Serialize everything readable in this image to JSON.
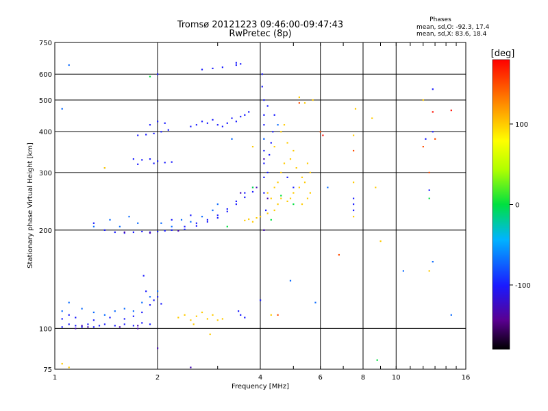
{
  "header": {
    "title_line1": "Tromsø 20121223 09:46:00-09:47:43",
    "title_line2": "RwPretec (8p)",
    "phases_label": "Phases",
    "stats_o": "mean, sd,O: -92.3, 17.4",
    "stats_x": "mean, sd,X:  83.6, 18.4"
  },
  "chart_data": {
    "type": "scatter",
    "xlabel": "Frequency [MHz]",
    "ylabel": "Stationary phase Virtual Height [km]",
    "xscale": "log",
    "yscale": "log",
    "xlim": [
      1,
      16
    ],
    "ylim": [
      75,
      750
    ],
    "xticks": [
      1,
      2,
      4,
      6,
      8,
      10,
      16
    ],
    "yticks": [
      75,
      100,
      200,
      300,
      400,
      500,
      600,
      750
    ],
    "grid": true,
    "colorbar": {
      "label": "[deg]",
      "min": -180,
      "max": 180,
      "ticks": [
        100,
        0,
        -100
      ]
    },
    "series": [
      {
        "phase": -100,
        "points": [
          [
            1.05,
            101
          ],
          [
            1.1,
            103
          ],
          [
            1.15,
            102
          ],
          [
            1.2,
            101
          ],
          [
            1.25,
            103
          ],
          [
            1.3,
            101
          ],
          [
            1.35,
            102
          ],
          [
            1.4,
            103
          ],
          [
            1.5,
            102
          ],
          [
            1.6,
            103
          ],
          [
            1.7,
            102
          ],
          [
            1.8,
            104
          ],
          [
            1.9,
            103
          ],
          [
            1.05,
            107
          ],
          [
            1.1,
            110
          ],
          [
            1.15,
            108
          ],
          [
            1.3,
            106
          ],
          [
            1.45,
            108
          ],
          [
            1.6,
            107
          ],
          [
            1.7,
            109
          ],
          [
            1.8,
            112
          ],
          [
            1.9,
            118
          ],
          [
            1.95,
            122
          ],
          [
            2.0,
            125
          ],
          [
            2.05,
            119
          ],
          [
            1.85,
            130
          ],
          [
            1.82,
            145
          ],
          [
            1.3,
            210
          ],
          [
            1.4,
            200
          ],
          [
            1.5,
            197
          ],
          [
            1.6,
            196
          ],
          [
            1.7,
            197
          ],
          [
            1.8,
            198
          ],
          [
            1.9,
            197
          ],
          [
            2.0,
            198
          ],
          [
            2.1,
            199
          ],
          [
            2.2,
            200
          ],
          [
            2.4,
            205
          ],
          [
            2.6,
            210
          ],
          [
            2.8,
            215
          ],
          [
            3.0,
            222
          ],
          [
            3.2,
            232
          ],
          [
            3.4,
            245
          ],
          [
            3.6,
            260
          ],
          [
            3.8,
            270
          ],
          [
            2.4,
            201
          ],
          [
            2.6,
            206
          ],
          [
            2.8,
            212
          ],
          [
            3.0,
            218
          ],
          [
            3.2,
            228
          ],
          [
            3.4,
            240
          ],
          [
            3.6,
            252
          ],
          [
            3.8,
            262
          ],
          [
            2.2,
            215
          ],
          [
            2.5,
            222
          ],
          [
            1.75,
            390
          ],
          [
            1.85,
            392
          ],
          [
            1.95,
            395
          ],
          [
            2.05,
            400
          ],
          [
            2.15,
            405
          ],
          [
            1.9,
            420
          ],
          [
            2.0,
            430
          ],
          [
            2.1,
            425
          ],
          [
            1.7,
            330
          ],
          [
            1.8,
            328
          ],
          [
            1.9,
            330
          ],
          [
            2.0,
            325
          ],
          [
            2.1,
            322
          ],
          [
            2.2,
            323
          ],
          [
            1.75,
            318
          ],
          [
            1.95,
            320
          ],
          [
            2.5,
            415
          ],
          [
            2.6,
            420
          ],
          [
            2.7,
            430
          ],
          [
            2.8,
            425
          ],
          [
            2.9,
            435
          ],
          [
            3.0,
            420
          ],
          [
            3.1,
            415
          ],
          [
            3.2,
            425
          ],
          [
            3.3,
            440
          ],
          [
            3.4,
            430
          ],
          [
            3.5,
            445
          ],
          [
            3.6,
            450
          ],
          [
            3.7,
            460
          ],
          [
            3.1,
            630
          ],
          [
            3.4,
            640
          ],
          [
            3.5,
            645
          ],
          [
            2.7,
            620
          ],
          [
            2.9,
            625
          ],
          [
            2.0,
            600
          ],
          [
            3.4,
            650
          ],
          [
            4.05,
            600
          ],
          [
            4.05,
            550
          ],
          [
            4.1,
            500
          ],
          [
            4.1,
            450
          ],
          [
            4.1,
            420
          ],
          [
            4.1,
            380
          ],
          [
            4.1,
            350
          ],
          [
            4.1,
            320
          ],
          [
            4.1,
            290
          ],
          [
            4.1,
            260
          ],
          [
            4.15,
            230
          ],
          [
            4.2,
            300
          ],
          [
            4.25,
            340
          ],
          [
            4.3,
            370
          ],
          [
            4.35,
            400
          ],
          [
            4.4,
            450
          ],
          [
            4.2,
            480
          ],
          [
            3.5,
            110
          ],
          [
            3.6,
            108
          ],
          [
            3.45,
            113
          ],
          [
            4.0,
            122
          ],
          [
            4.8,
            290
          ],
          [
            5.0,
            270
          ],
          [
            7.5,
            230
          ],
          [
            7.5,
            240
          ],
          [
            7.5,
            250
          ],
          [
            12.5,
            265
          ],
          [
            12.8,
            400
          ],
          [
            12.8,
            540
          ],
          [
            12.2,
            380
          ]
        ]
      },
      {
        "phase": -130,
        "points": [
          [
            1.15,
            100
          ],
          [
            1.25,
            101
          ],
          [
            1.55,
            101
          ],
          [
            1.75,
            102
          ],
          [
            1.6,
            197
          ],
          [
            1.9,
            196
          ],
          [
            2.3,
            199
          ],
          [
            1.2,
            102
          ],
          [
            3.9,
            270
          ],
          [
            4.1,
            330
          ],
          [
            4.2,
            250
          ],
          [
            4.1,
            200
          ],
          [
            2.5,
            76
          ],
          [
            2.0,
            87
          ],
          [
            1.75,
            100
          ],
          [
            3.5,
            260
          ]
        ]
      },
      {
        "phase": -70,
        "points": [
          [
            1.05,
            113
          ],
          [
            1.1,
            120
          ],
          [
            1.2,
            115
          ],
          [
            1.3,
            112
          ],
          [
            1.4,
            110
          ],
          [
            1.5,
            113
          ],
          [
            1.6,
            115
          ],
          [
            1.7,
            113
          ],
          [
            1.8,
            120
          ],
          [
            1.9,
            125
          ],
          [
            2.0,
            130
          ],
          [
            1.3,
            205
          ],
          [
            1.45,
            215
          ],
          [
            1.55,
            205
          ],
          [
            1.65,
            220
          ],
          [
            1.75,
            210
          ],
          [
            2.05,
            210
          ],
          [
            2.2,
            205
          ],
          [
            2.35,
            215
          ],
          [
            2.5,
            212
          ],
          [
            2.7,
            220
          ],
          [
            2.9,
            230
          ],
          [
            3.0,
            240
          ],
          [
            1.1,
            640
          ],
          [
            1.05,
            470
          ],
          [
            1.4,
            310
          ],
          [
            3.3,
            380
          ],
          [
            4.1,
            380
          ],
          [
            4.5,
            420
          ],
          [
            4.9,
            140
          ],
          [
            5.8,
            120
          ],
          [
            6.3,
            270
          ],
          [
            12.8,
            160
          ],
          [
            14.5,
            110
          ],
          [
            10.5,
            150
          ]
        ]
      },
      {
        "phase": 0,
        "points": [
          [
            1.9,
            590
          ],
          [
            3.2,
            205
          ],
          [
            3.8,
            270
          ],
          [
            4.3,
            215
          ],
          [
            8.8,
            80
          ],
          [
            4.6,
            255
          ],
          [
            5.0,
            240
          ],
          [
            12.5,
            250
          ]
        ]
      },
      {
        "phase": 100,
        "points": [
          [
            2.3,
            108
          ],
          [
            2.4,
            110
          ],
          [
            2.5,
            106
          ],
          [
            2.6,
            109
          ],
          [
            2.7,
            112
          ],
          [
            2.8,
            107
          ],
          [
            2.9,
            110
          ],
          [
            3.0,
            106
          ],
          [
            3.1,
            107
          ],
          [
            2.55,
            103
          ],
          [
            2.85,
            96
          ],
          [
            3.6,
            214
          ],
          [
            3.7,
            216
          ],
          [
            3.8,
            212
          ],
          [
            3.9,
            218
          ],
          [
            4.0,
            220
          ],
          [
            4.2,
            225
          ],
          [
            4.4,
            230
          ],
          [
            4.5,
            240
          ],
          [
            4.6,
            250
          ],
          [
            4.8,
            245
          ],
          [
            5.0,
            260
          ],
          [
            5.2,
            270
          ],
          [
            5.4,
            280
          ],
          [
            5.6,
            300
          ],
          [
            4.3,
            250
          ],
          [
            4.5,
            280
          ],
          [
            4.6,
            300
          ],
          [
            4.7,
            320
          ],
          [
            4.9,
            330
          ],
          [
            5.1,
            310
          ],
          [
            5.3,
            290
          ],
          [
            5.5,
            320
          ],
          [
            5.6,
            260
          ],
          [
            4.4,
            360
          ],
          [
            4.6,
            400
          ],
          [
            4.8,
            370
          ],
          [
            5.0,
            350
          ],
          [
            4.7,
            420
          ],
          [
            4.2,
            260
          ],
          [
            4.4,
            270
          ],
          [
            4.9,
            250
          ],
          [
            5.3,
            240
          ],
          [
            5.5,
            250
          ],
          [
            3.8,
            360
          ],
          [
            4.3,
            110
          ],
          [
            5.4,
            490
          ],
          [
            5.7,
            500
          ],
          [
            5.2,
            510
          ],
          [
            1.4,
            310
          ],
          [
            1.05,
            78
          ],
          [
            1.1,
            76
          ],
          [
            7.5,
            390
          ],
          [
            7.5,
            280
          ],
          [
            7.6,
            470
          ],
          [
            8.5,
            440
          ],
          [
            8.7,
            270
          ],
          [
            7.5,
            220
          ],
          [
            9.0,
            185
          ],
          [
            12.0,
            500
          ],
          [
            12.5,
            150
          ]
        ]
      },
      {
        "phase": 150,
        "points": [
          [
            4.5,
            110
          ],
          [
            5.2,
            490
          ],
          [
            6.8,
            168
          ],
          [
            6.0,
            400
          ],
          [
            7.5,
            350
          ],
          [
            12.0,
            360
          ],
          [
            12.5,
            300
          ],
          [
            13.0,
            380
          ]
        ]
      },
      {
        "phase": 175,
        "points": [
          [
            6.1,
            390
          ],
          [
            12.8,
            460
          ],
          [
            14.5,
            465
          ]
        ]
      }
    ]
  }
}
